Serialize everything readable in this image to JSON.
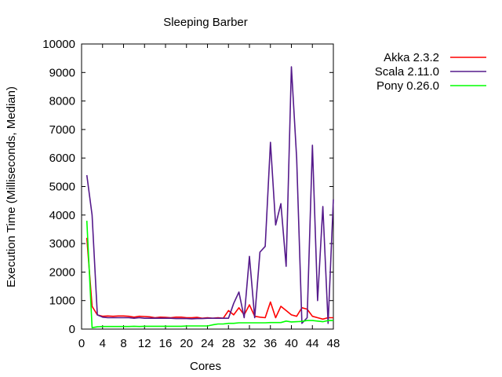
{
  "chart_data": {
    "type": "line",
    "title": "Sleeping Barber",
    "xlabel": "Cores",
    "ylabel": "Execution Time (Milliseconds, Median)",
    "xlim": [
      0,
      48
    ],
    "ylim": [
      0,
      10000
    ],
    "xticks": [
      0,
      4,
      8,
      12,
      16,
      20,
      24,
      28,
      32,
      36,
      40,
      44,
      48
    ],
    "yticks": [
      0,
      1000,
      2000,
      3000,
      4000,
      5000,
      6000,
      7000,
      8000,
      9000,
      10000
    ],
    "grid": false,
    "legend_position": "outside-top-right",
    "x": [
      1,
      2,
      3,
      4,
      5,
      6,
      7,
      8,
      9,
      10,
      11,
      12,
      13,
      14,
      15,
      16,
      17,
      18,
      19,
      20,
      21,
      22,
      23,
      24,
      25,
      26,
      27,
      28,
      29,
      30,
      31,
      32,
      33,
      34,
      35,
      36,
      37,
      38,
      39,
      40,
      41,
      42,
      43,
      44,
      45,
      46,
      47,
      48
    ],
    "series": [
      {
        "name": "Akka 2.3.2",
        "color": "#ff0000",
        "values": [
          3200,
          800,
          500,
          450,
          460,
          450,
          460,
          460,
          450,
          420,
          450,
          440,
          430,
          400,
          420,
          410,
          400,
          420,
          420,
          400,
          400,
          410,
          380,
          400,
          380,
          400,
          380,
          650,
          500,
          750,
          500,
          850,
          450,
          420,
          400,
          950,
          400,
          800,
          650,
          500,
          450,
          750,
          700,
          450,
          400,
          350,
          400,
          400
        ]
      },
      {
        "name": "Scala 2.11.0",
        "color": "#551a8b",
        "values": [
          5400,
          4000,
          500,
          420,
          400,
          400,
          400,
          400,
          400,
          380,
          400,
          380,
          380,
          380,
          380,
          380,
          380,
          370,
          370,
          370,
          360,
          370,
          370,
          380,
          380,
          380,
          380,
          380,
          900,
          1300,
          400,
          2550,
          400,
          2700,
          2900,
          6550,
          3650,
          4400,
          2200,
          9200,
          6000,
          200,
          400,
          6450,
          1000,
          4300,
          200,
          4550
        ]
      },
      {
        "name": "Pony 0.26.0",
        "color": "#00ff00",
        "values": [
          3800,
          50,
          80,
          90,
          90,
          90,
          90,
          90,
          90,
          100,
          90,
          100,
          100,
          100,
          100,
          100,
          100,
          100,
          100,
          110,
          110,
          110,
          110,
          110,
          150,
          180,
          180,
          200,
          200,
          220,
          220,
          220,
          220,
          220,
          220,
          230,
          230,
          230,
          280,
          250,
          260,
          270,
          300,
          300,
          280,
          260,
          300,
          300
        ]
      }
    ]
  }
}
